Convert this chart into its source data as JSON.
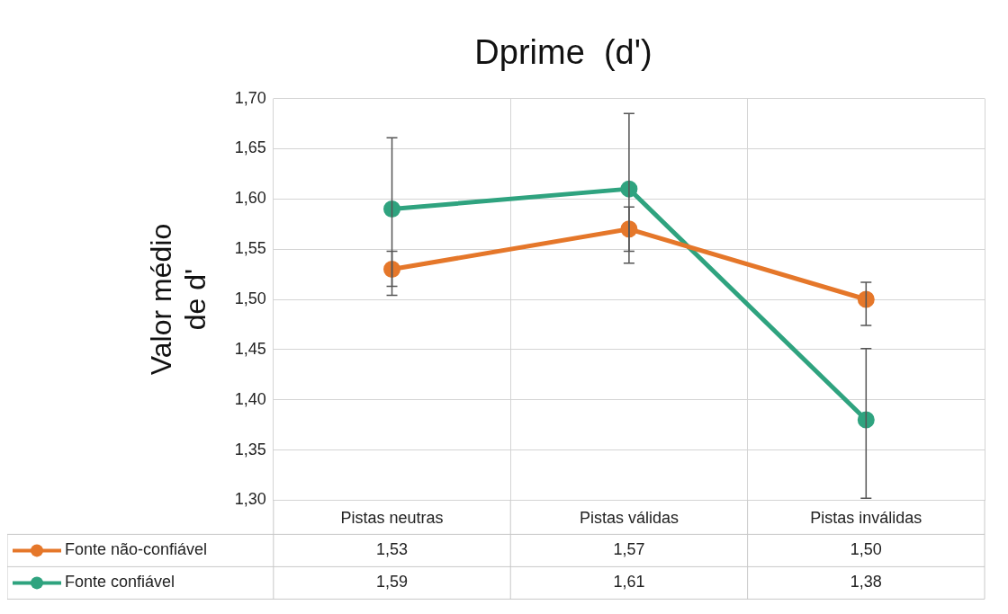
{
  "chart_data": {
    "type": "line",
    "title": "Dprime  (d')",
    "ylabel": "Valor médio\nde d'",
    "categories": [
      "Pistas neutras",
      "Pistas válidas",
      "Pistas inválidas"
    ],
    "series": [
      {
        "name": "Fonte não-confiável",
        "color": "#e5772a",
        "values": [
          1.53,
          1.57,
          1.5
        ],
        "value_labels": [
          "1,53",
          "1,57",
          "1,50"
        ],
        "errors": [
          [
            1.504,
            1.548
          ],
          [
            1.548,
            1.592
          ],
          [
            1.474,
            1.517
          ]
        ]
      },
      {
        "name": "Fonte confiável",
        "color": "#2fa37f",
        "values": [
          1.59,
          1.61,
          1.38
        ],
        "value_labels": [
          "1,59",
          "1,61",
          "1,38"
        ],
        "errors": [
          [
            1.513,
            1.661
          ],
          [
            1.536,
            1.685
          ],
          [
            1.302,
            1.451
          ]
        ]
      }
    ],
    "ylim": [
      1.3,
      1.7
    ],
    "yticks": [
      {
        "value": 1.3,
        "label": "1,30"
      },
      {
        "value": 1.35,
        "label": "1,35"
      },
      {
        "value": 1.4,
        "label": "1,40"
      },
      {
        "value": 1.45,
        "label": "1,45"
      },
      {
        "value": 1.5,
        "label": "1,50"
      },
      {
        "value": 1.55,
        "label": "1,55"
      },
      {
        "value": 1.6,
        "label": "1,60"
      },
      {
        "value": 1.65,
        "label": "1,65"
      },
      {
        "value": 1.7,
        "label": "1,70"
      }
    ],
    "grid": true,
    "legend": "bottom",
    "marker": "circle",
    "line_style": "solid"
  }
}
